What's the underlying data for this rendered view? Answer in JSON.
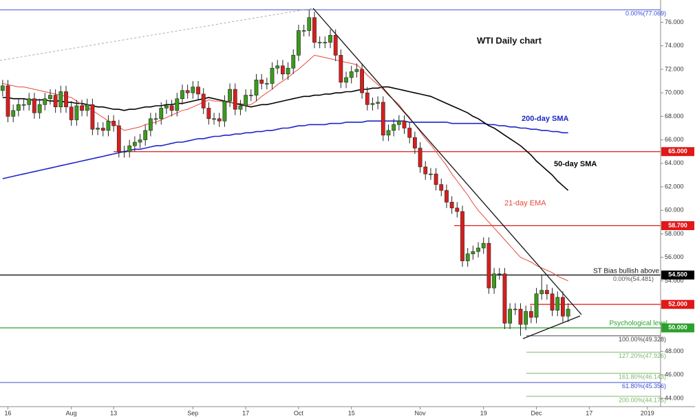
{
  "chart_data": {
    "type": "candlestick",
    "title": "WTI Daily chart",
    "categories": [
      null,
      "16",
      null,
      null,
      null,
      null,
      null,
      null,
      null,
      null,
      null,
      null,
      null,
      "Aug",
      null,
      null,
      null,
      null,
      null,
      null,
      null,
      "13",
      null,
      null,
      null,
      null,
      null,
      null,
      null,
      null,
      null,
      null,
      null,
      null,
      null,
      null,
      "Sep",
      null,
      null,
      null,
      null,
      null,
      null,
      null,
      null,
      null,
      "17",
      null,
      null,
      null,
      null,
      null,
      null,
      null,
      null,
      null,
      "Oct",
      null,
      null,
      null,
      null,
      null,
      null,
      null,
      null,
      null,
      "15",
      null,
      null,
      null,
      null,
      null,
      null,
      null,
      null,
      null,
      null,
      null,
      null,
      "Nov",
      null,
      null,
      null,
      null,
      null,
      null,
      null,
      null,
      null,
      null,
      null,
      "19",
      null,
      null,
      null,
      null,
      null,
      null,
      null,
      null,
      null,
      "Dec",
      null,
      null,
      null,
      null,
      null,
      null,
      null,
      null,
      null,
      "17",
      null,
      null,
      null,
      null,
      null,
      null,
      null,
      null,
      null,
      null,
      "2019",
      null,
      null
    ],
    "open": [
      70.2,
      70.6,
      68.0,
      68.5,
      69.0,
      69.0,
      69.5,
      68.3,
      69.0,
      69.5,
      69.8,
      68.8,
      70.1,
      68.8,
      67.7,
      68.9,
      68.5,
      69.0,
      66.9,
      67.0,
      66.8,
      67.6,
      67.2,
      65.0,
      65.0,
      65.5,
      65.8,
      66.0,
      66.8,
      67.8,
      67.8,
      68.7,
      68.9,
      68.5,
      69.5,
      70.2,
      70.0,
      70.5,
      69.9,
      68.7,
      67.8,
      67.8,
      67.6,
      69.3,
      70.3,
      68.6,
      68.9,
      69.8,
      69.8,
      71.1,
      70.8,
      70.8,
      72.1,
      72.3,
      71.6,
      72.1,
      73.2,
      75.3,
      75.3,
      76.4,
      74.3,
      74.3,
      74.3,
      74.9,
      73.2,
      70.9,
      71.3,
      71.8,
      72.0,
      70.0,
      69.0,
      69.1,
      69.2,
      66.4,
      66.8,
      67.3,
      67.6,
      67.0,
      66.2,
      65.3,
      63.7,
      63.1,
      63.1,
      62.2,
      61.7,
      60.7,
      60.2,
      59.9,
      55.7,
      56.3,
      56.5,
      56.8,
      57.2,
      53.4,
      54.6,
      54.6,
      50.4,
      51.6,
      51.6,
      50.3,
      51.4,
      50.9,
      52.9,
      53.2,
      52.9,
      51.5,
      52.6,
      51.0,
      null,
      null,
      null,
      null,
      null,
      null,
      null,
      null,
      null,
      null,
      null,
      null,
      null,
      null,
      null,
      null,
      null
    ],
    "high": [
      71.1,
      71.1,
      69.0,
      69.5,
      69.5,
      70.0,
      70.0,
      69.5,
      70.0,
      70.3,
      70.3,
      70.6,
      70.6,
      69.3,
      69.4,
      69.4,
      69.5,
      69.5,
      67.5,
      67.5,
      68.1,
      68.1,
      67.7,
      65.5,
      66.0,
      66.3,
      66.5,
      67.3,
      68.3,
      68.3,
      69.2,
      69.4,
      69.4,
      70.0,
      70.7,
      70.7,
      71.0,
      71.0,
      70.4,
      69.2,
      68.3,
      68.3,
      69.8,
      70.8,
      70.8,
      69.4,
      70.3,
      70.3,
      71.6,
      71.6,
      71.3,
      72.6,
      72.8,
      72.8,
      72.6,
      73.7,
      75.8,
      75.8,
      77.07,
      76.9,
      74.8,
      74.8,
      75.4,
      75.4,
      73.7,
      71.8,
      72.3,
      72.5,
      72.5,
      70.5,
      69.6,
      69.7,
      69.7,
      67.3,
      67.8,
      68.1,
      68.1,
      67.5,
      66.7,
      65.8,
      64.2,
      63.6,
      63.6,
      62.7,
      62.2,
      61.2,
      60.7,
      60.4,
      56.8,
      57.0,
      57.3,
      57.7,
      57.7,
      55.1,
      55.1,
      55.1,
      52.1,
      52.1,
      52.1,
      51.9,
      51.9,
      53.4,
      54.48,
      53.7,
      53.4,
      53.1,
      53.1,
      52.1,
      null,
      null,
      null,
      null,
      null,
      null,
      null,
      null,
      null,
      null,
      null,
      null,
      null,
      null,
      null,
      null,
      null
    ],
    "low": [
      69.7,
      67.5,
      67.5,
      68.0,
      68.5,
      68.5,
      67.8,
      67.8,
      68.5,
      69.0,
      68.3,
      68.3,
      68.3,
      67.2,
      67.2,
      68.0,
      68.0,
      66.4,
      66.4,
      66.3,
      66.3,
      66.7,
      64.5,
      64.5,
      64.5,
      65.0,
      65.3,
      65.5,
      66.3,
      67.3,
      67.3,
      68.2,
      68.0,
      68.0,
      69.0,
      69.5,
      69.5,
      69.4,
      68.2,
      67.3,
      67.3,
      67.1,
      67.1,
      68.8,
      68.1,
      68.1,
      68.4,
      69.3,
      69.3,
      70.3,
      70.3,
      70.3,
      71.6,
      71.1,
      71.1,
      71.6,
      72.7,
      74.8,
      74.8,
      73.8,
      73.8,
      73.8,
      73.8,
      72.7,
      70.4,
      70.4,
      70.8,
      71.3,
      69.5,
      68.5,
      68.5,
      68.6,
      65.9,
      65.9,
      66.3,
      66.8,
      66.5,
      65.7,
      64.8,
      63.2,
      62.6,
      62.6,
      61.7,
      61.2,
      60.2,
      59.7,
      59.4,
      55.2,
      55.2,
      55.8,
      56.0,
      56.3,
      52.9,
      52.9,
      54.1,
      49.9,
      49.9,
      51.1,
      49.33,
      49.8,
      50.4,
      50.4,
      52.4,
      52.4,
      51.0,
      51.0,
      50.5,
      50.5,
      null,
      null,
      null,
      null,
      null,
      null,
      null,
      null,
      null,
      null,
      null,
      null,
      null,
      null,
      null,
      null,
      null
    ],
    "close": [
      70.6,
      68.0,
      68.5,
      69.0,
      69.0,
      69.5,
      68.3,
      69.0,
      69.5,
      69.8,
      68.8,
      70.1,
      68.8,
      67.7,
      68.9,
      68.5,
      69.0,
      66.9,
      67.0,
      66.8,
      67.6,
      67.2,
      65.0,
      65.0,
      65.5,
      65.8,
      66.0,
      66.8,
      67.8,
      67.8,
      68.7,
      68.9,
      68.5,
      69.5,
      70.2,
      70.0,
      70.5,
      69.9,
      68.7,
      67.8,
      67.8,
      67.6,
      69.3,
      70.3,
      68.6,
      68.9,
      69.8,
      69.8,
      71.1,
      70.8,
      70.8,
      72.1,
      72.3,
      71.6,
      72.1,
      73.2,
      75.3,
      75.3,
      76.4,
      74.3,
      74.3,
      74.3,
      74.9,
      73.2,
      70.9,
      71.3,
      71.8,
      72.0,
      70.0,
      69.0,
      69.1,
      69.2,
      66.4,
      66.8,
      67.3,
      67.6,
      67.0,
      66.2,
      65.3,
      63.7,
      63.1,
      63.1,
      62.2,
      61.7,
      60.7,
      60.2,
      59.9,
      55.7,
      56.3,
      56.5,
      56.8,
      57.2,
      53.4,
      54.6,
      54.6,
      50.4,
      51.6,
      51.6,
      50.3,
      51.4,
      50.9,
      52.9,
      53.2,
      52.9,
      51.5,
      52.6,
      51.0,
      51.6,
      null,
      null,
      null,
      null,
      null,
      null,
      null,
      null,
      null,
      null,
      null,
      null,
      null,
      null,
      null,
      null,
      null
    ],
    "up_color": "#3c9a1c",
    "down_color": "#d81e1e",
    "overlays": [
      {
        "name": "200-day SMA",
        "color": "#1c24c8",
        "values": [
          62.7,
          62.8,
          62.9,
          63.0,
          63.1,
          63.2,
          63.3,
          63.4,
          63.5,
          63.6,
          63.7,
          63.8,
          63.9,
          64.0,
          64.1,
          64.2,
          64.3,
          64.4,
          64.5,
          64.6,
          64.7,
          64.8,
          64.9,
          65.0,
          65.1,
          65.2,
          65.2,
          65.3,
          65.4,
          65.5,
          65.5,
          65.6,
          65.7,
          65.8,
          65.8,
          65.9,
          66.0,
          66.1,
          66.1,
          66.2,
          66.3,
          66.3,
          66.4,
          66.4,
          66.5,
          66.5,
          66.6,
          66.6,
          66.7,
          66.7,
          66.8,
          66.8,
          66.9,
          67.0,
          67.0,
          67.1,
          67.2,
          67.2,
          67.3,
          67.3,
          67.3,
          67.3,
          67.4,
          67.4,
          67.4,
          67.5,
          67.5,
          67.5,
          67.5,
          67.6,
          67.6,
          67.6,
          67.6,
          67.6,
          67.6,
          67.6,
          67.6,
          67.5,
          67.5,
          67.5,
          67.5,
          67.5,
          67.5,
          67.5,
          67.5,
          67.4,
          67.4,
          67.4,
          67.4,
          67.4,
          67.4,
          67.4,
          67.3,
          67.3,
          67.2,
          67.2,
          67.1,
          67.1,
          67.0,
          67.0,
          66.9,
          66.9,
          66.8,
          66.8,
          66.7,
          66.7,
          66.6,
          66.6,
          null,
          null,
          null,
          null,
          null,
          null,
          null,
          null,
          null,
          null,
          null,
          null,
          null,
          null,
          null,
          null,
          null
        ]
      },
      {
        "name": "50-day SMA",
        "color": "#000000",
        "values": [
          69.6,
          69.6,
          69.5,
          69.5,
          69.5,
          69.4,
          69.4,
          69.4,
          69.4,
          69.3,
          69.3,
          69.3,
          69.2,
          69.2,
          69.1,
          69.1,
          69.0,
          68.9,
          68.8,
          68.8,
          68.7,
          68.6,
          68.6,
          68.5,
          68.6,
          68.6,
          68.7,
          68.8,
          68.8,
          68.9,
          68.9,
          69.0,
          69.0,
          69.1,
          69.1,
          69.2,
          69.3,
          69.4,
          69.5,
          69.6,
          69.5,
          69.4,
          69.3,
          69.2,
          69.1,
          69.0,
          68.9,
          68.8,
          68.9,
          69.0,
          69.0,
          69.1,
          69.2,
          69.3,
          69.4,
          69.5,
          69.6,
          69.7,
          69.7,
          69.8,
          69.8,
          69.9,
          69.9,
          70.0,
          70.0,
          70.1,
          70.1,
          70.2,
          70.3,
          70.3,
          70.4,
          70.4,
          70.5,
          70.5,
          70.4,
          70.3,
          70.2,
          70.1,
          70.0,
          69.9,
          69.8,
          69.7,
          69.5,
          69.3,
          69.1,
          68.9,
          68.7,
          68.5,
          68.3,
          68.0,
          67.8,
          67.5,
          67.2,
          67.0,
          66.7,
          66.4,
          66.1,
          65.8,
          65.5,
          65.1,
          64.7,
          64.2,
          63.8,
          63.4,
          63.0,
          62.5,
          62.1,
          61.7,
          null,
          null,
          null,
          null,
          null,
          null,
          null,
          null,
          null,
          null,
          null,
          null,
          null,
          null,
          null,
          null,
          null
        ]
      },
      {
        "name": "21-day EMA",
        "color": "#e8483c",
        "values": [
          70.8,
          70.7,
          70.6,
          70.5,
          70.5,
          70.4,
          70.3,
          70.2,
          70.1,
          70.0,
          69.9,
          69.8,
          69.7,
          69.6,
          69.3,
          69.0,
          68.8,
          68.5,
          68.2,
          67.9,
          67.6,
          67.4,
          67.1,
          66.8,
          66.9,
          67.0,
          67.1,
          67.3,
          67.4,
          67.5,
          67.7,
          67.9,
          68.1,
          68.3,
          68.5,
          68.6,
          68.8,
          69.0,
          69.2,
          69.4,
          69.3,
          69.3,
          69.2,
          69.2,
          69.1,
          69.1,
          69.0,
          69.0,
          69.3,
          69.7,
          70.0,
          70.3,
          70.7,
          71.0,
          71.3,
          71.7,
          72.0,
          72.4,
          72.8,
          73.2,
          73.1,
          73.0,
          72.9,
          72.8,
          72.7,
          72.6,
          72.5,
          72.4,
          72.0,
          71.5,
          71.1,
          70.7,
          70.3,
          69.8,
          69.4,
          69.0,
          68.4,
          67.9,
          67.3,
          66.7,
          66.1,
          65.6,
          65.0,
          64.4,
          63.8,
          63.1,
          62.5,
          61.9,
          61.3,
          60.6,
          60.0,
          59.5,
          59.0,
          58.5,
          58.0,
          57.5,
          57.0,
          56.5,
          56.0,
          55.8,
          55.6,
          55.3,
          55.1,
          54.9,
          54.7,
          54.4,
          54.2,
          54.0,
          null,
          null,
          null,
          null,
          null,
          null,
          null,
          null,
          null,
          null,
          null,
          null,
          null,
          null,
          null,
          null,
          null
        ]
      }
    ],
    "levels": [
      {
        "value": 65.0,
        "label": "65.000",
        "color": "#e01818"
      },
      {
        "value": 58.7,
        "label": "58.700",
        "color": "#e01818"
      },
      {
        "value": 54.5,
        "label": "54.500",
        "color": "#000000"
      },
      {
        "value": 52.0,
        "label": "52.000",
        "color": "#e01818"
      },
      {
        "value": 50.0,
        "label": "50.000",
        "color": "#2ca02c"
      }
    ],
    "fibs": [
      {
        "value": 77.069,
        "label": "0.00%(77.069)",
        "color": "#3a4fd8"
      },
      {
        "value": 54.481,
        "label": "0.00%(54.481)",
        "color": "#555555"
      },
      {
        "value": 49.328,
        "label": "100.00%(49.328)",
        "color": "#444444"
      },
      {
        "value": 47.926,
        "label": "127.20%(47.926)",
        "color": "#7cb86c"
      },
      {
        "value": 46.143,
        "label": "161.80%(46.143)",
        "color": "#7cb86c"
      },
      {
        "value": 45.356,
        "label": "61.80%(45.356)",
        "color": "#3a4fd8"
      },
      {
        "value": 44.175,
        "label": "200.00%(44.175)",
        "color": "#7cb86c"
      }
    ],
    "annotations": [
      "ST Bias bullish above",
      "Psychological level"
    ],
    "ylim": [
      43.3,
      77.9
    ],
    "yticks": [
      {
        "value": 44,
        "label": "44.000"
      },
      {
        "value": 46,
        "label": "46.000"
      },
      {
        "value": 48,
        "label": "48.000"
      },
      {
        "value": 50,
        "label": "50.000"
      },
      {
        "value": 52,
        "label": "52.000"
      },
      {
        "value": 54,
        "label": "54.000"
      },
      {
        "value": 56,
        "label": "56.000"
      },
      {
        "value": 58,
        "label": "58.000"
      },
      {
        "value": 60,
        "label": "60.000"
      },
      {
        "value": 62,
        "label": "62.000"
      },
      {
        "value": 64,
        "label": "64.000"
      },
      {
        "value": 66,
        "label": "66.000"
      },
      {
        "value": 68,
        "label": "68.000"
      },
      {
        "value": 70,
        "label": "70.000"
      },
      {
        "value": 72,
        "label": "72.000"
      },
      {
        "value": 74,
        "label": "74.000"
      },
      {
        "value": 76,
        "label": "76.000"
      }
    ],
    "grid": false
  }
}
